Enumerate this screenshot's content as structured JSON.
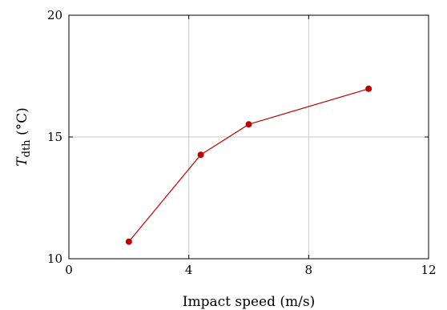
{
  "chart_data": {
    "type": "line",
    "title": "",
    "xlabel": "Impact speed (m/s)",
    "ylabel": {
      "main": "T",
      "subscript": "dth",
      "unit": " (°C)"
    },
    "xlim": [
      0,
      12
    ],
    "ylim": [
      10,
      20
    ],
    "xticks": [
      0,
      4,
      8,
      12
    ],
    "yticks": [
      10,
      15,
      20
    ],
    "grid": true,
    "legend": "none",
    "series": [
      {
        "x": [
          2.0,
          4.4,
          6.0,
          10.0
        ],
        "y": [
          10.7,
          14.27,
          15.52,
          16.98
        ],
        "color": "#c00000",
        "marker": "circle"
      }
    ]
  }
}
